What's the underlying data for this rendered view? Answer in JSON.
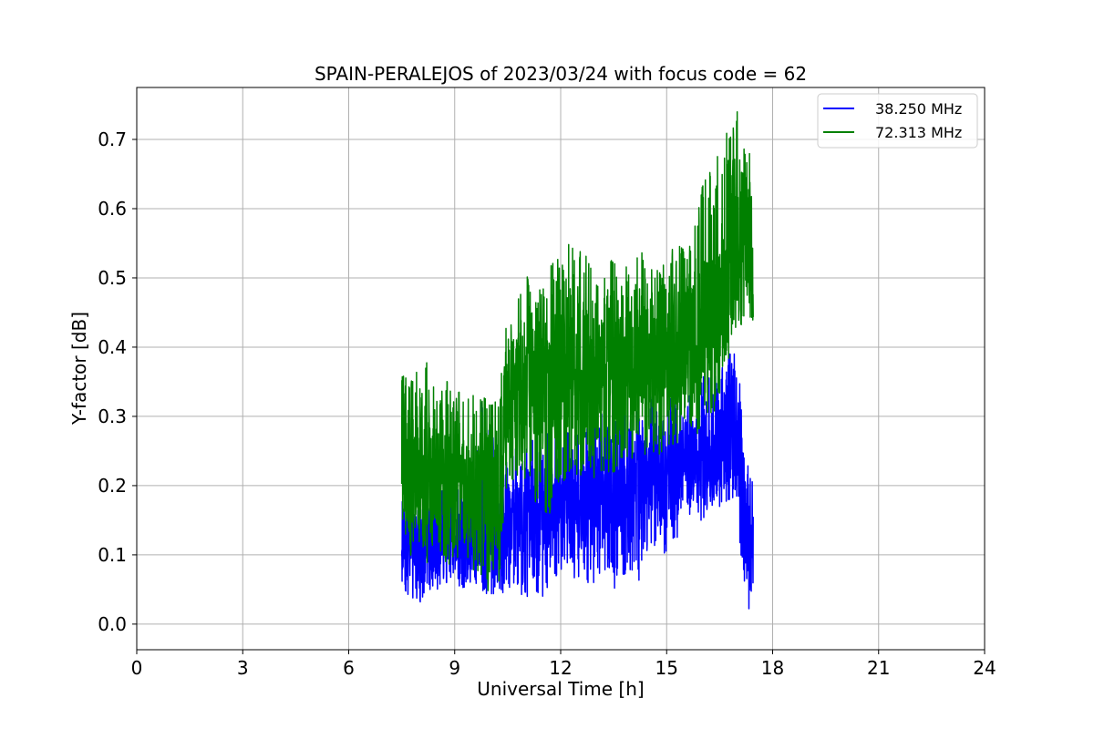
{
  "chart_data": {
    "type": "line",
    "title": "SPAIN-PERALEJOS of 2023/03/24 with focus code = 62",
    "xlabel": "Universal Time [h]",
    "ylabel": "Y-factor [dB]",
    "xlim": [
      0,
      24
    ],
    "ylim": [
      -0.037,
      0.775
    ],
    "xticks": [
      0,
      3,
      6,
      9,
      12,
      15,
      18,
      21,
      24
    ],
    "yticks": [
      0.0,
      0.1,
      0.2,
      0.3,
      0.4,
      0.5,
      0.6,
      0.7
    ],
    "ytick_labels": [
      "0.0",
      "0.1",
      "0.2",
      "0.3",
      "0.4",
      "0.5",
      "0.6",
      "0.7"
    ],
    "grid": true,
    "legend_position": "top-right",
    "series": [
      {
        "name": "38.250 MHz",
        "color": "#0000ff",
        "x": [
          7.5,
          7.75,
          8.0,
          8.25,
          8.5,
          8.75,
          9.0,
          9.25,
          9.5,
          9.75,
          10.0,
          10.25,
          10.5,
          10.75,
          11.0,
          11.25,
          11.5,
          11.75,
          12.0,
          12.25,
          12.5,
          12.75,
          13.0,
          13.25,
          13.5,
          13.75,
          14.0,
          14.25,
          14.5,
          14.75,
          15.0,
          15.25,
          15.5,
          15.75,
          16.0,
          16.25,
          16.5,
          16.75,
          17.0,
          17.15,
          17.25,
          17.35,
          17.45
        ],
        "y": [
          0.12,
          0.13,
          0.11,
          0.12,
          0.1,
          0.14,
          0.13,
          0.12,
          0.14,
          0.15,
          0.13,
          0.12,
          0.15,
          0.16,
          0.15,
          0.17,
          0.16,
          0.18,
          0.17,
          0.19,
          0.16,
          0.18,
          0.2,
          0.19,
          0.18,
          0.2,
          0.21,
          0.2,
          0.22,
          0.21,
          0.23,
          0.22,
          0.23,
          0.24,
          0.25,
          0.24,
          0.26,
          0.27,
          0.26,
          0.24,
          0.15,
          0.1,
          0.08
        ],
        "y_low": [
          0.05,
          0.04,
          0.03,
          0.05,
          0.05,
          0.06,
          0.06,
          0.05,
          0.06,
          0.05,
          0.04,
          0.05,
          0.04,
          0.06,
          0.03,
          0.05,
          0.04,
          0.06,
          0.08,
          0.07,
          0.05,
          0.06,
          0.06,
          0.07,
          0.05,
          0.07,
          0.08,
          0.06,
          0.12,
          0.11,
          0.1,
          0.12,
          0.14,
          0.15,
          0.15,
          0.16,
          0.17,
          0.18,
          0.18,
          0.05,
          0.03,
          0.02,
          0.03
        ],
        "y_high": [
          0.2,
          0.22,
          0.18,
          0.19,
          0.17,
          0.22,
          0.21,
          0.2,
          0.24,
          0.33,
          0.28,
          0.25,
          0.24,
          0.26,
          0.25,
          0.28,
          0.27,
          0.28,
          0.28,
          0.3,
          0.27,
          0.29,
          0.31,
          0.3,
          0.29,
          0.31,
          0.32,
          0.31,
          0.33,
          0.32,
          0.33,
          0.32,
          0.34,
          0.35,
          0.36,
          0.37,
          0.38,
          0.39,
          0.39,
          0.3,
          0.25,
          0.22,
          0.2
        ]
      },
      {
        "name": "72.313 MHz",
        "color": "#008000",
        "x": [
          7.5,
          7.75,
          8.0,
          8.25,
          8.5,
          8.75,
          9.0,
          9.25,
          9.5,
          9.75,
          10.0,
          10.25,
          10.5,
          10.75,
          11.0,
          11.25,
          11.5,
          11.75,
          12.0,
          12.25,
          12.5,
          12.75,
          13.0,
          13.25,
          13.5,
          13.75,
          14.0,
          14.25,
          14.5,
          14.75,
          15.0,
          15.25,
          15.5,
          15.75,
          16.0,
          16.25,
          16.5,
          16.75,
          17.0,
          17.15,
          17.25,
          17.35,
          17.45
        ],
        "y": [
          0.22,
          0.21,
          0.2,
          0.22,
          0.21,
          0.21,
          0.2,
          0.21,
          0.19,
          0.2,
          0.18,
          0.19,
          0.33,
          0.35,
          0.34,
          0.36,
          0.37,
          0.35,
          0.38,
          0.36,
          0.37,
          0.38,
          0.36,
          0.38,
          0.39,
          0.37,
          0.38,
          0.39,
          0.4,
          0.38,
          0.39,
          0.4,
          0.41,
          0.42,
          0.43,
          0.44,
          0.45,
          0.5,
          0.55,
          0.56,
          0.54,
          0.55,
          0.56
        ],
        "y_low": [
          0.12,
          0.1,
          0.08,
          0.09,
          0.1,
          0.08,
          0.09,
          0.1,
          0.08,
          0.07,
          0.04,
          0.06,
          0.22,
          0.2,
          0.21,
          0.18,
          0.15,
          0.12,
          0.2,
          0.22,
          0.21,
          0.23,
          0.2,
          0.22,
          0.22,
          0.22,
          0.23,
          0.24,
          0.25,
          0.24,
          0.26,
          0.26,
          0.27,
          0.27,
          0.28,
          0.3,
          0.32,
          0.38,
          0.44,
          0.43,
          0.42,
          0.43,
          0.44
        ],
        "y_high": [
          0.36,
          0.35,
          0.37,
          0.39,
          0.37,
          0.36,
          0.33,
          0.34,
          0.33,
          0.33,
          0.32,
          0.33,
          0.45,
          0.48,
          0.51,
          0.47,
          0.49,
          0.52,
          0.53,
          0.55,
          0.54,
          0.53,
          0.49,
          0.51,
          0.53,
          0.52,
          0.52,
          0.54,
          0.52,
          0.51,
          0.53,
          0.55,
          0.54,
          0.56,
          0.63,
          0.66,
          0.68,
          0.72,
          0.74,
          0.69,
          0.68,
          0.69,
          0.66
        ]
      }
    ]
  }
}
